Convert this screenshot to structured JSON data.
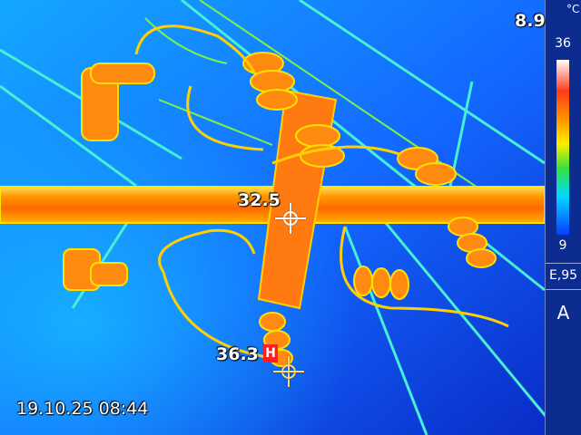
{
  "camera": {
    "timestamp": "19.10.25 08:44",
    "min_temp_reading": "8.9",
    "center_spot": "32.5",
    "max_spot": "36.3",
    "max_marker": "H",
    "emissivity": "E,95",
    "mode": "A"
  },
  "scale": {
    "unit": "°C",
    "max": "36",
    "min": "9",
    "colors": [
      "#ffffff",
      "#ff3a1a",
      "#ff9a00",
      "#ffee00",
      "#37e03a",
      "#00d9ff",
      "#0b3cff"
    ]
  },
  "scene": {
    "background_colors": [
      "#1a6bff",
      "#0a2bbf"
    ],
    "hot_color": "#ff7a00",
    "warm_color": "#ffe000",
    "line_color": "#3fe0ff"
  }
}
